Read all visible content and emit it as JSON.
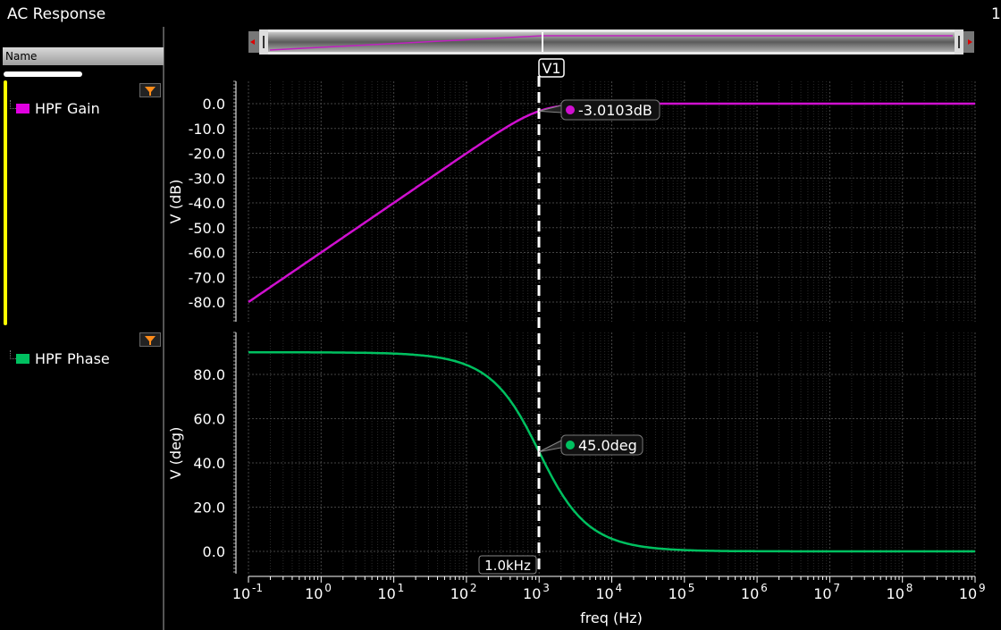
{
  "window": {
    "title": "AC Response",
    "corner_text": "1"
  },
  "sidebar": {
    "column_header": "Name",
    "signals": [
      {
        "label": "HPF Gain",
        "color": "#e000e0",
        "icon": "swatch"
      },
      {
        "label": "HPF Phase",
        "color": "#00c060",
        "icon": "swatch"
      }
    ],
    "filter_icon": "funnel-icon"
  },
  "cursor": {
    "label": "V1",
    "x_readout": "1.0kHz"
  },
  "chart_data": [
    {
      "type": "line",
      "panel": "gain",
      "ylabel": "V (dB)",
      "ylim": [
        -90,
        8
      ],
      "yticks": [
        "0.0",
        "-10.0",
        "-20.0",
        "-30.0",
        "-40.0",
        "-50.0",
        "-60.0",
        "-70.0",
        "-80.0"
      ],
      "ytick_values": [
        0,
        -10,
        -20,
        -30,
        -40,
        -50,
        -60,
        -70,
        -80
      ],
      "x_scale": "log",
      "series": [
        {
          "name": "HPF Gain",
          "color": "#d010d0",
          "x": [
            0.1,
            1,
            10,
            100,
            300,
            1000,
            3000,
            10000,
            100000,
            1000000,
            1000000000
          ],
          "y": [
            -80.0,
            -60.0,
            -40.0,
            -20.0,
            -10.9,
            -3.01,
            -0.46,
            -0.04,
            0.0,
            0.0,
            0.0
          ]
        }
      ],
      "marker": {
        "x": 1000,
        "y": -3.0103,
        "text": "-3.0103dB"
      },
      "grid": true
    },
    {
      "type": "line",
      "panel": "phase",
      "ylabel": "V (deg)",
      "xlabel": "freq (Hz)",
      "ylim": [
        -10,
        100
      ],
      "yticks": [
        "80.0",
        "60.0",
        "40.0",
        "20.0",
        "0.0"
      ],
      "ytick_values": [
        80,
        60,
        40,
        20,
        0
      ],
      "x_scale": "log",
      "xlim": [
        0.1,
        1000000000
      ],
      "xticks_base": [
        "10",
        "10",
        "10",
        "10",
        "10",
        "10",
        "10",
        "10",
        "10",
        "10",
        "10"
      ],
      "xticks_exp": [
        "-1",
        "0",
        "1",
        "2",
        "3",
        "4",
        "5",
        "6",
        "7",
        "8",
        "9"
      ],
      "series": [
        {
          "name": "HPF Phase",
          "color": "#00c060",
          "x": [
            0.1,
            1,
            10,
            100,
            300,
            1000,
            3000,
            10000,
            100000,
            1000000,
            1000000000
          ],
          "y": [
            90.0,
            89.9,
            89.4,
            84.3,
            73.3,
            45.0,
            18.4,
            5.7,
            0.6,
            0.06,
            0.0
          ]
        }
      ],
      "marker": {
        "x": 1000,
        "y": 45.0,
        "text": "45.0deg"
      },
      "grid": true
    }
  ]
}
